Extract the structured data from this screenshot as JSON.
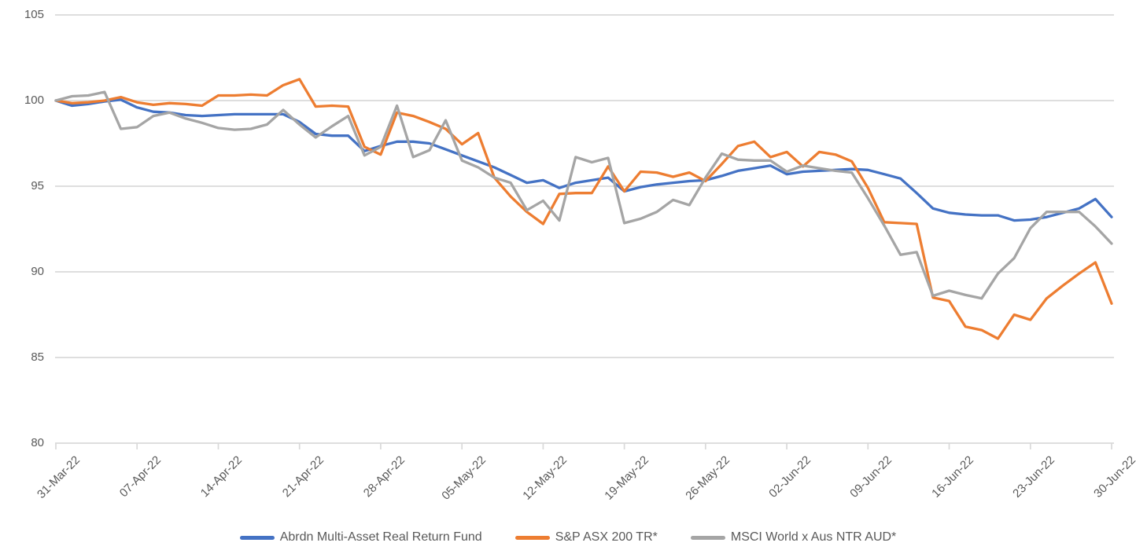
{
  "chart_data": {
    "type": "line",
    "title": "",
    "xlabel": "",
    "ylabel": "",
    "ylim": [
      80,
      105
    ],
    "y_ticks": [
      105,
      100,
      95,
      90,
      85,
      80
    ],
    "grid": "horizontal",
    "legend_position": "bottom",
    "points_per_tick": 5,
    "n_points": 66,
    "x_tick_labels": [
      "31-Mar-22",
      "07-Apr-22",
      "14-Apr-22",
      "21-Apr-22",
      "28-Apr-22",
      "05-May-22",
      "12-May-22",
      "19-May-22",
      "26-May-22",
      "02-Jun-22",
      "09-Jun-22",
      "16-Jun-22",
      "23-Jun-22",
      "30-Jun-22"
    ],
    "series": [
      {
        "name": "Abrdn Multi-Asset Real Return Fund",
        "color": "#4472C4",
        "values": [
          100,
          99.7,
          99.8,
          99.95,
          100.05,
          99.6,
          99.35,
          99.3,
          99.15,
          99.1,
          99.15,
          99.2,
          99.2,
          99.2,
          99.2,
          98.75,
          98.05,
          97.95,
          97.95,
          97.05,
          97.35,
          97.6,
          97.6,
          97.5,
          97.15,
          96.8,
          96.45,
          96.1,
          95.65,
          95.2,
          95.35,
          94.9,
          95.2,
          95.35,
          95.5,
          94.7,
          94.95,
          95.1,
          95.2,
          95.3,
          95.35,
          95.6,
          95.9,
          96.05,
          96.2,
          95.7,
          95.85,
          95.9,
          95.95,
          96.0,
          95.95,
          95.7,
          95.45,
          94.6,
          93.7,
          93.45,
          93.35,
          93.3,
          93.3,
          93.0,
          93.05,
          93.2,
          93.45,
          93.7,
          94.25,
          93.2
        ]
      },
      {
        "name": "S&P ASX 200 TR*",
        "color": "#ED7D31",
        "values": [
          100,
          99.85,
          99.9,
          100.0,
          100.2,
          99.9,
          99.75,
          99.85,
          99.8,
          99.7,
          100.3,
          100.3,
          100.35,
          100.3,
          100.9,
          101.25,
          99.65,
          99.7,
          99.65,
          97.3,
          96.85,
          99.3,
          99.1,
          98.75,
          98.35,
          97.45,
          98.1,
          95.5,
          94.4,
          93.5,
          92.8,
          94.55,
          94.6,
          94.6,
          96.15,
          94.7,
          95.85,
          95.8,
          95.55,
          95.8,
          95.3,
          96.3,
          97.35,
          97.6,
          96.7,
          97.0,
          96.15,
          97.0,
          96.85,
          96.45,
          94.9,
          92.9,
          92.85,
          92.8,
          88.5,
          88.3,
          86.8,
          86.6,
          86.1,
          87.5,
          87.2,
          88.45,
          89.2,
          89.9,
          90.55,
          88.15
        ]
      },
      {
        "name": "MSCI World x Aus NTR AUD*",
        "color": "#A5A5A5",
        "values": [
          100,
          100.25,
          100.3,
          100.5,
          98.35,
          98.45,
          99.1,
          99.3,
          98.95,
          98.7,
          98.4,
          98.3,
          98.35,
          98.6,
          99.45,
          98.6,
          97.85,
          98.5,
          99.1,
          96.8,
          97.3,
          99.7,
          96.7,
          97.1,
          98.85,
          96.5,
          96.1,
          95.5,
          95.2,
          93.6,
          94.15,
          93.0,
          96.7,
          96.4,
          96.65,
          92.85,
          93.1,
          93.5,
          94.2,
          93.9,
          95.5,
          96.9,
          96.55,
          96.5,
          96.5,
          95.85,
          96.2,
          96.05,
          95.9,
          95.8,
          94.3,
          92.7,
          91.0,
          91.15,
          88.6,
          88.9,
          88.65,
          88.45,
          89.9,
          90.8,
          92.55,
          93.5,
          93.5,
          93.5,
          92.65,
          91.65
        ]
      }
    ]
  },
  "colors": {
    "gridline": "#D9D9D9",
    "axis_text": "#595959",
    "background": "#FFFFFF"
  }
}
